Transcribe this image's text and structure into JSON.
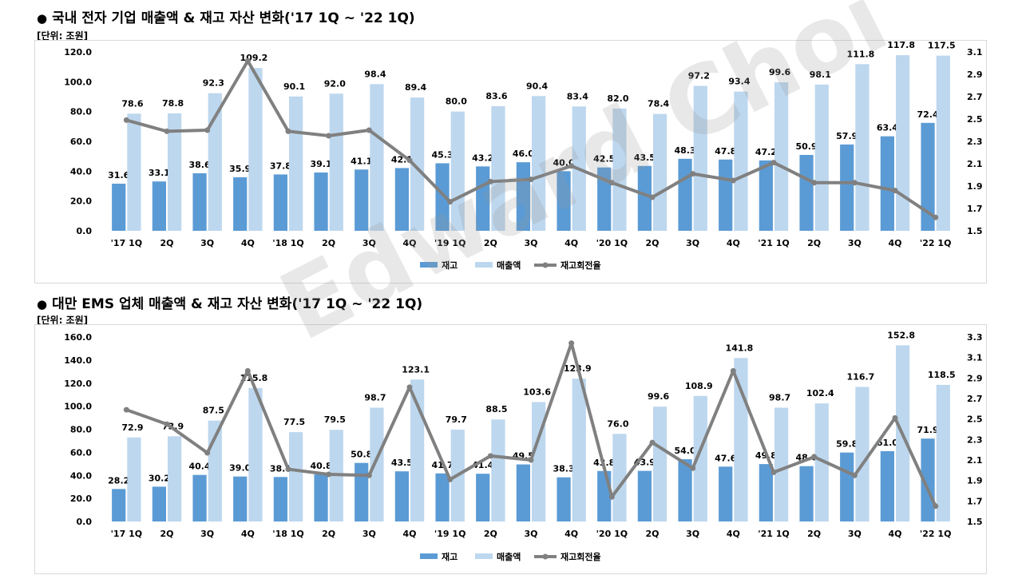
{
  "watermark": "Edward Choi",
  "chart_data": [
    {
      "type": "bar",
      "title": "국내 전자 기업 매출액 & 재고 자산 변화('17 1Q ~ '22 1Q)",
      "unit_label": "[단위: 조원]",
      "categories": [
        "'17  1Q",
        "2Q",
        "3Q",
        "4Q",
        "'18  1Q",
        "2Q",
        "3Q",
        "4Q",
        "'19  1Q",
        "2Q",
        "3Q",
        "4Q",
        "'20  1Q",
        "2Q",
        "3Q",
        "4Q",
        "'21  1Q",
        "2Q",
        "3Q",
        "4Q",
        "'22  1Q"
      ],
      "series": [
        {
          "name": "재고",
          "axis": "left",
          "color": "#5b9bd5",
          "values": [
            31.6,
            33.1,
            38.6,
            35.9,
            37.8,
            39.1,
            41.1,
            42.1,
            45.3,
            43.2,
            46.0,
            40.0,
            42.5,
            43.5,
            48.3,
            47.8,
            47.2,
            50.9,
            57.9,
            63.4,
            72.4
          ]
        },
        {
          "name": "매출액",
          "axis": "left",
          "color": "#bdd7ee",
          "values": [
            78.6,
            78.8,
            92.3,
            109.2,
            90.1,
            92.0,
            98.4,
            89.4,
            80.0,
            83.6,
            90.4,
            83.4,
            82.0,
            78.4,
            97.2,
            93.4,
            99.6,
            98.1,
            111.8,
            117.8,
            117.5
          ]
        },
        {
          "name": "재고회전율",
          "axis": "right",
          "color": "#808080",
          "type": "line",
          "values": [
            2.49,
            2.39,
            2.4,
            3.02,
            2.39,
            2.35,
            2.4,
            2.13,
            1.76,
            1.94,
            1.96,
            2.08,
            1.93,
            1.8,
            2.01,
            1.95,
            2.11,
            1.93,
            1.93,
            1.86,
            1.62
          ]
        }
      ],
      "yticks_left": [
        "0.0",
        "20.0",
        "40.0",
        "60.0",
        "80.0",
        "100.0",
        "120.0"
      ],
      "ylim_left": [
        0,
        120
      ],
      "yticks_right": [
        "1.5",
        "1.7",
        "1.9",
        "2.1",
        "2.3",
        "2.5",
        "2.7",
        "2.9",
        "3.1"
      ],
      "ylim_right": [
        1.5,
        3.1
      ],
      "legend": "bottom"
    },
    {
      "type": "bar",
      "title": "대만 EMS 업체 매출액 & 재고 자산 변화('17 1Q ~ '22 1Q)",
      "unit_label": "[단위: 조원]",
      "categories": [
        "'17  1Q",
        "2Q",
        "3Q",
        "4Q",
        "'18  1Q",
        "2Q",
        "3Q",
        "4Q",
        "'19  1Q",
        "2Q",
        "3Q",
        "4Q",
        "'20  1Q",
        "2Q",
        "3Q",
        "4Q",
        "'21  1Q",
        "2Q",
        "3Q",
        "4Q",
        "'22  1Q"
      ],
      "series": [
        {
          "name": "재고",
          "axis": "left",
          "color": "#5b9bd5",
          "values": [
            28.2,
            30.2,
            40.4,
            39.0,
            38.6,
            40.8,
            50.8,
            43.5,
            41.7,
            41.4,
            49.5,
            38.3,
            43.8,
            43.9,
            54.0,
            47.6,
            49.8,
            48.0,
            59.8,
            61.0,
            71.9
          ]
        },
        {
          "name": "매출액",
          "axis": "left",
          "color": "#bdd7ee",
          "values": [
            72.9,
            73.9,
            87.5,
            115.8,
            77.5,
            79.5,
            98.7,
            123.1,
            79.7,
            88.5,
            103.6,
            123.9,
            76.0,
            99.6,
            108.9,
            141.8,
            98.7,
            102.4,
            116.7,
            152.8,
            118.5
          ]
        },
        {
          "name": "재고회전율",
          "axis": "right",
          "color": "#808080",
          "type": "line",
          "values": [
            2.59,
            2.45,
            2.17,
            2.97,
            2.01,
            1.96,
            1.95,
            2.81,
            1.91,
            2.14,
            2.1,
            3.24,
            1.74,
            2.27,
            2.02,
            2.97,
            1.98,
            2.13,
            1.95,
            2.51,
            1.65
          ]
        }
      ],
      "yticks_left": [
        "0.0",
        "20.0",
        "40.0",
        "60.0",
        "80.0",
        "100.0",
        "120.0",
        "140.0",
        "160.0"
      ],
      "ylim_left": [
        0,
        160
      ],
      "yticks_right": [
        "1.5",
        "1.7",
        "1.9",
        "2.1",
        "2.3",
        "2.5",
        "2.7",
        "2.9",
        "3.1",
        "3.3"
      ],
      "ylim_right": [
        1.5,
        3.3
      ],
      "legend": "bottom"
    }
  ]
}
